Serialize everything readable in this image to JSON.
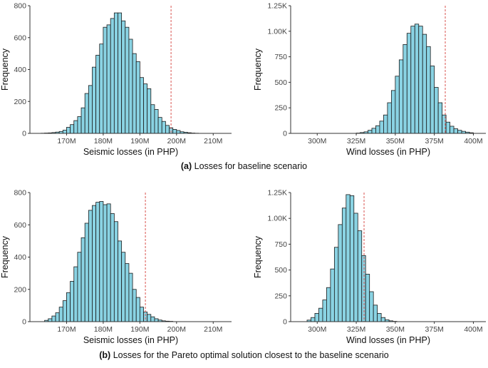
{
  "captions": {
    "a_label": "(a)",
    "a_text": "Losses for baseline scenario",
    "b_label": "(b)",
    "b_text": "Losses for the Pareto optimal solution closest to the baseline scenario"
  },
  "colors": {
    "bar_fill": "#8ad3e3",
    "bar_stroke": "#1a1a1a",
    "ref_line": "#d9534f",
    "axis": "#333333"
  },
  "chart_data": [
    {
      "id": "a-seismic",
      "type": "bar",
      "title": "",
      "xlabel": "Seismic losses (in PHP)",
      "ylabel": "Frequency",
      "xlim": [
        160,
        215
      ],
      "ylim": [
        0,
        800
      ],
      "xticks": [
        170,
        180,
        190,
        200,
        210
      ],
      "xtick_labels": [
        "170M",
        "180M",
        "190M",
        "200M",
        "210M"
      ],
      "yticks": [
        0,
        200,
        400,
        600,
        800
      ],
      "ytick_labels": [
        "0",
        "200",
        "400",
        "600",
        "800"
      ],
      "bin_start": 163,
      "bin_width": 1,
      "values": [
        1,
        2,
        3,
        5,
        8,
        12,
        20,
        38,
        55,
        80,
        105,
        160,
        250,
        300,
        415,
        490,
        560,
        665,
        680,
        720,
        755,
        755,
        705,
        665,
        590,
        500,
        450,
        350,
        310,
        280,
        180,
        150,
        100,
        75,
        50,
        35,
        25,
        18,
        10,
        7,
        4,
        2,
        1
      ],
      "ref_line": 198.5
    },
    {
      "id": "a-wind",
      "type": "bar",
      "title": "",
      "xlabel": "Wind losses (in PHP)",
      "ylabel": "Frequency",
      "xlim": [
        283,
        408
      ],
      "ylim": [
        0,
        1250
      ],
      "xticks": [
        300,
        325,
        350,
        375,
        400
      ],
      "xtick_labels": [
        "300M",
        "325M",
        "350M",
        "375M",
        "400M"
      ],
      "yticks": [
        0,
        250,
        500,
        750,
        1000,
        1250
      ],
      "ytick_labels": [
        "0",
        "250",
        "500",
        "750",
        "1.00K",
        "1.25K"
      ],
      "bin_start": 325,
      "bin_width": 2.5,
      "values": [
        3,
        8,
        15,
        30,
        50,
        75,
        120,
        180,
        300,
        420,
        560,
        720,
        870,
        980,
        1050,
        1070,
        1050,
        970,
        850,
        660,
        450,
        300,
        180,
        110,
        70,
        45,
        30,
        20,
        12,
        6
      ],
      "ref_line": 382
    },
    {
      "id": "b-seismic",
      "type": "bar",
      "title": "",
      "xlabel": "Seismic losses (in PHP)",
      "ylabel": "Frequency",
      "xlim": [
        160,
        215
      ],
      "ylim": [
        0,
        800
      ],
      "xticks": [
        170,
        180,
        190,
        200,
        210
      ],
      "xtick_labels": [
        "170M",
        "180M",
        "190M",
        "200M",
        "210M"
      ],
      "yticks": [
        0,
        200,
        400,
        600,
        800
      ],
      "ytick_labels": [
        "0",
        "200",
        "400",
        "600",
        "800"
      ],
      "bin_start": 164,
      "bin_width": 1,
      "values": [
        8,
        18,
        35,
        55,
        90,
        130,
        180,
        250,
        340,
        430,
        520,
        610,
        690,
        720,
        740,
        745,
        725,
        730,
        670,
        620,
        500,
        430,
        360,
        300,
        200,
        150,
        90,
        60,
        45,
        30,
        18,
        10,
        5,
        3,
        2
      ],
      "ref_line": 191.5
    },
    {
      "id": "b-wind",
      "type": "bar",
      "title": "",
      "xlabel": "Wind losses (in PHP)",
      "ylabel": "Frequency",
      "xlim": [
        283,
        408
      ],
      "ylim": [
        0,
        1250
      ],
      "xticks": [
        300,
        325,
        350,
        375,
        400
      ],
      "xtick_labels": [
        "300M",
        "325M",
        "350M",
        "375M",
        "400M"
      ],
      "yticks": [
        0,
        250,
        500,
        750,
        1000,
        1250
      ],
      "ytick_labels": [
        "0",
        "250",
        "500",
        "750",
        "1.00K",
        "1.25K"
      ],
      "bin_start": 293.5,
      "bin_width": 2.5,
      "values": [
        15,
        40,
        80,
        130,
        210,
        330,
        510,
        720,
        940,
        1100,
        1230,
        1220,
        1050,
        880,
        640,
        460,
        290,
        160,
        80,
        40,
        18,
        8,
        3
      ],
      "ref_line": 330
    }
  ]
}
